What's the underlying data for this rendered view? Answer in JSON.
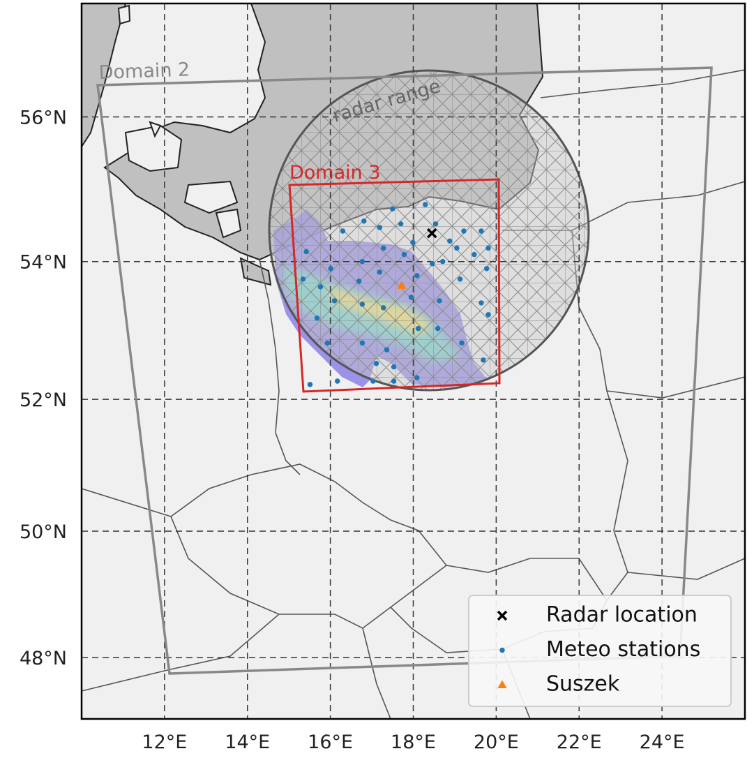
{
  "chart_data": {
    "type": "map",
    "projection": "mercator",
    "xlim": [
      10,
      26
    ],
    "ylim": [
      47,
      57.5
    ],
    "xticks": [
      {
        "value": 12,
        "label": "12°E"
      },
      {
        "value": 14,
        "label": "14°E"
      },
      {
        "value": 16,
        "label": "16°E"
      },
      {
        "value": 18,
        "label": "18°E"
      },
      {
        "value": 20,
        "label": "20°E"
      },
      {
        "value": 22,
        "label": "22°E"
      },
      {
        "value": 24,
        "label": "24°E"
      }
    ],
    "yticks": [
      {
        "value": 48,
        "label": "48°N"
      },
      {
        "value": 50,
        "label": "50°N"
      },
      {
        "value": 52,
        "label": "52°N"
      },
      {
        "value": 54,
        "label": "54°N"
      },
      {
        "value": 56,
        "label": "56°N"
      }
    ],
    "grid": true,
    "legend": "lower right",
    "annotations": [
      "Domain 2",
      "radar range",
      "Domain 3"
    ],
    "series": [
      {
        "name": "Radar location",
        "marker": "x",
        "color": "#000000",
        "x": [
          18.45
        ],
        "y": [
          54.4
        ]
      },
      {
        "name": "Meteo stations",
        "marker": "dot",
        "color": "#1f77b4",
        "x": [
          17.5,
          18.29,
          16.81,
          16.3,
          17.19,
          17.7,
          18.54,
          17.99,
          18.88,
          19.22,
          19.64,
          19.81,
          19.47,
          19.77,
          19.05,
          18.46,
          17.78,
          17.28,
          16.77,
          16.01,
          15.42,
          15.34,
          15.76,
          16.69,
          17.19,
          18.09,
          18.71,
          19.13,
          19.64,
          19.81,
          18.63,
          17.95,
          17.28,
          16.77,
          16.1,
          15.68,
          15.93,
          16.77,
          17.36,
          18.12,
          18.59,
          19.17,
          19.69,
          18.09,
          17.53,
          17.03,
          16.17,
          15.51,
          17.11,
          17.53
        ],
        "y": [
          54.74,
          54.8,
          54.57,
          54.43,
          54.48,
          54.53,
          54.53,
          54.27,
          54.29,
          54.43,
          54.43,
          54.19,
          54.1,
          53.9,
          54.19,
          53.97,
          54.1,
          54.19,
          54.0,
          53.9,
          54.14,
          53.75,
          53.64,
          53.72,
          53.85,
          53.8,
          54.0,
          53.75,
          53.41,
          53.24,
          53.44,
          53.49,
          53.34,
          53.39,
          53.44,
          53.19,
          52.83,
          52.83,
          52.73,
          53.04,
          53.04,
          52.83,
          52.58,
          52.32,
          52.27,
          52.27,
          52.27,
          52.22,
          52.53,
          52.48
        ]
      },
      {
        "name": "Suszek",
        "marker": "triangle",
        "color": "#ff7f0e",
        "x": [
          17.72
        ],
        "y": [
          53.66
        ]
      }
    ]
  }
}
